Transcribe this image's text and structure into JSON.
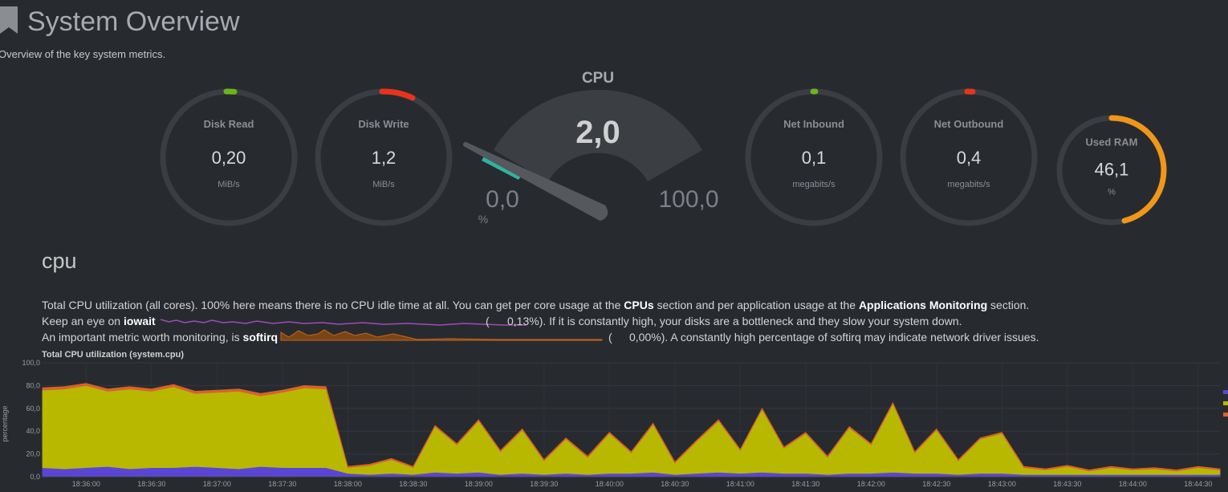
{
  "header": {
    "title": "System Overview",
    "subtitle": "Overview of the key system metrics."
  },
  "gauges": [
    {
      "label": "Disk Read",
      "value": "0,20",
      "unit": "MiB/s"
    },
    {
      "label": "Disk Write",
      "value": "1,2",
      "unit": "MiB/s"
    },
    {
      "label": "Net Inbound",
      "value": "0,1",
      "unit": "megabits/s"
    },
    {
      "label": "Net Outbound",
      "value": "0,4",
      "unit": "megabits/s"
    },
    {
      "label": "Used RAM",
      "value": "46,1",
      "unit": "%"
    }
  ],
  "cpu_gauge": {
    "label": "CPU",
    "value": "2,0",
    "min": "0,0",
    "max": "100,0",
    "unit": "%"
  },
  "section": {
    "title": "cpu",
    "line1": [
      "Total CPU utilization (all cores). 100% here means there is no CPU idle time at all. You can get per core usage at the ",
      "CPUs",
      " section and per application usage at the ",
      "Applications Monitoring",
      " section."
    ],
    "line2": [
      "Keep an eye on ",
      "iowait",
      "(",
      "0,13%). If it is constantly high, your disks are a bottleneck and they slow your system down."
    ],
    "line3": [
      "An important metric worth monitoring, is ",
      "softirq",
      "(",
      "0,00%). A constantly high percentage of softirq may indicate network driver issues."
    ]
  },
  "chart_data": {
    "type": "area",
    "title": "Total CPU utilization (system.cpu)",
    "y_label": "percentage",
    "x": [
      "18:35:40",
      "18:35:50",
      "18:36:00",
      "18:36:10",
      "18:36:20",
      "18:36:30",
      "18:36:40",
      "18:36:50",
      "18:37:00",
      "18:37:10",
      "18:37:20",
      "18:37:30",
      "18:37:40",
      "18:37:50",
      "18:38:00",
      "18:38:10",
      "18:38:20",
      "18:38:30",
      "18:38:40",
      "18:38:50",
      "18:39:00",
      "18:39:10",
      "18:39:20",
      "18:39:30",
      "18:39:40",
      "18:39:50",
      "18:40:00",
      "18:40:10",
      "18:40:20",
      "18:40:30",
      "18:40:40",
      "18:40:50",
      "18:41:00",
      "18:41:10",
      "18:41:20",
      "18:41:30",
      "18:41:40",
      "18:41:50",
      "18:42:00",
      "18:42:10",
      "18:42:20",
      "18:42:30",
      "18:42:40",
      "18:42:50",
      "18:43:00",
      "18:43:10",
      "18:43:20",
      "18:43:30",
      "18:43:40",
      "18:43:50",
      "18:44:00",
      "18:44:10",
      "18:44:20",
      "18:44:30",
      "18:44:40"
    ],
    "series": [
      {
        "color": "#5b45d6",
        "values": [
          8,
          7,
          8,
          9,
          7,
          8,
          8,
          9,
          8,
          7,
          9,
          8,
          8,
          8,
          3,
          2,
          3,
          2,
          4,
          3,
          4,
          2,
          3,
          2,
          3,
          2,
          3,
          3,
          4,
          2,
          3,
          4,
          3,
          4,
          3,
          3,
          2,
          3,
          3,
          4,
          3,
          3,
          2,
          3,
          3,
          2,
          2,
          2,
          2,
          2,
          2,
          2,
          2,
          2,
          2
        ]
      },
      {
        "color": "#b8b800",
        "values": [
          68,
          70,
          72,
          66,
          70,
          67,
          71,
          64,
          66,
          68,
          62,
          66,
          70,
          69,
          5,
          8,
          12,
          6,
          40,
          25,
          45,
          20,
          38,
          12,
          30,
          15,
          35,
          18,
          42,
          10,
          28,
          45,
          20,
          55,
          22,
          35,
          15,
          40,
          25,
          60,
          18,
          38,
          12,
          30,
          35,
          6,
          4,
          7,
          3,
          6,
          4,
          5,
          3,
          6,
          4
        ]
      },
      {
        "color": "#d9622b",
        "values": [
          2,
          2,
          2,
          2,
          2,
          2,
          2,
          2,
          2,
          2,
          2,
          2,
          2,
          2,
          1,
          1,
          1,
          1,
          1,
          1,
          1,
          1,
          1,
          1,
          1,
          1,
          1,
          1,
          1,
          1,
          1,
          1,
          1,
          1,
          1,
          1,
          1,
          1,
          1,
          1,
          1,
          1,
          1,
          1,
          1,
          1,
          1,
          1,
          1,
          1,
          1,
          1,
          1,
          1,
          1
        ]
      }
    ],
    "ylim": [
      0,
      100
    ],
    "yticks": [
      {
        "value": 0,
        "label": "0,0"
      },
      {
        "value": 20,
        "label": "20,0"
      },
      {
        "value": 40,
        "label": "40,0"
      },
      {
        "value": 60,
        "label": "60,0"
      },
      {
        "value": 80,
        "label": "80,0"
      },
      {
        "value": 100,
        "label": "100,0"
      }
    ],
    "xticks": [
      "18:36:00",
      "18:36:30",
      "18:37:00",
      "18:37:30",
      "18:38:00",
      "18:38:30",
      "18:39:00",
      "18:39:30",
      "18:40:00",
      "18:40:30",
      "18:41:00",
      "18:41:30",
      "18:42:00",
      "18:42:30",
      "18:43:00",
      "18:43:30",
      "18:44:00",
      "18:44:30"
    ],
    "grid": true,
    "stacked": true
  }
}
